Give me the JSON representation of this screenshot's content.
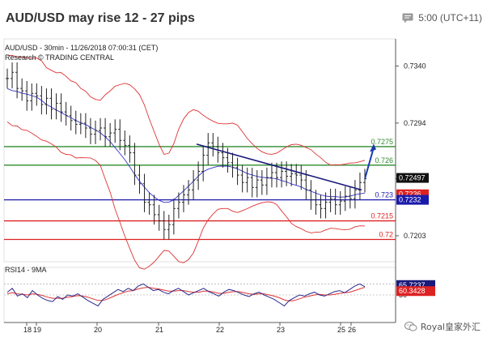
{
  "header": {
    "title": "AUD/USD may rise 12 - 27 pips",
    "timezone": "5:00 (UTC+11)",
    "icon": "message-icon"
  },
  "chart_data": {
    "type": "line",
    "title": "AUD/USD - 30min - 11/26/2018 07:00:31 (CET)",
    "subtitle": "Research © TRADING CENTRAL",
    "x_tick_labels": [
      "18",
      "19",
      "20",
      "21",
      "22",
      "23",
      "25",
      "26"
    ],
    "price_axis": {
      "ticks": [
        0.7203,
        0.7249,
        0.7294,
        0.734
      ],
      "tick_labels": [
        "0.7203",
        "0.7249",
        "0.7294",
        "0.7340"
      ],
      "range": [
        0.7182,
        0.7362
      ]
    },
    "levels": [
      {
        "value": 0.7275,
        "label": "0.7275",
        "color": "#2e8b2e"
      },
      {
        "value": 0.726,
        "label": "0.726",
        "color": "#2e8b2e"
      },
      {
        "value": 0.7232,
        "label": "0.723",
        "color": "#1a1aaa"
      },
      {
        "value": 0.7215,
        "label": "0.7215",
        "color": "#dd2222"
      },
      {
        "value": 0.72,
        "label": "0.72",
        "color": "#dd2222"
      }
    ],
    "price_boxes": [
      {
        "value": 0.72497,
        "label": "0.72497",
        "bg": "#111111"
      },
      {
        "value": 0.72365,
        "label": "0.7236",
        "bg": "#dd2222"
      },
      {
        "value": 0.7232,
        "label": "0.7232",
        "bg": "#1a1aaa"
      }
    ],
    "price_series": [
      0.733,
      0.7335,
      0.7322,
      0.732,
      0.7312,
      0.7318,
      0.7316,
      0.7309,
      0.7314,
      0.7305,
      0.731,
      0.7303,
      0.73,
      0.7296,
      0.7293,
      0.7294,
      0.729,
      0.7285,
      0.7288,
      0.729,
      0.7283,
      0.7286,
      0.7289,
      0.728,
      0.7276,
      0.727,
      0.7252,
      0.7245,
      0.723,
      0.7228,
      0.722,
      0.7215,
      0.7208,
      0.7212,
      0.7225,
      0.723,
      0.7236,
      0.724,
      0.7248,
      0.7255,
      0.7268,
      0.7278,
      0.7275,
      0.727,
      0.7266,
      0.7262,
      0.7258,
      0.7252,
      0.7246,
      0.725,
      0.7242,
      0.7248,
      0.7244,
      0.725,
      0.7254,
      0.725,
      0.7255,
      0.7251,
      0.7253,
      0.7252,
      0.7248,
      0.724,
      0.7232,
      0.7228,
      0.7225,
      0.723,
      0.7233,
      0.7228,
      0.7231,
      0.7235,
      0.7233,
      0.724,
      0.7246,
      0.7249
    ],
    "trendline": {
      "start": 0.7277,
      "end": 0.724
    },
    "projection": {
      "from": 0.7249,
      "to": 0.7272
    },
    "rsi": {
      "label": "RSI14 - 9MA",
      "range": [
        0,
        100
      ],
      "ticks": [
        50,
        70
      ],
      "rsi_value": "65.7237",
      "ma_value": "60.3428",
      "rsi_series": [
        55,
        62,
        48,
        52,
        45,
        58,
        50,
        44,
        40,
        38,
        47,
        42,
        50,
        48,
        52,
        46,
        40,
        35,
        30,
        42,
        48,
        54,
        60,
        56,
        62,
        58,
        66,
        70,
        64,
        58,
        60,
        55,
        52,
        58,
        62,
        56,
        50,
        54,
        58,
        62,
        56,
        52,
        48,
        55,
        60,
        58,
        54,
        50,
        47,
        52,
        55,
        50,
        46,
        42,
        36,
        30,
        40,
        45,
        50,
        48,
        52,
        55,
        50,
        48,
        52,
        56,
        58,
        54,
        60,
        66,
        70,
        65
      ],
      "ma_series": [
        52,
        54,
        52,
        51,
        50,
        52,
        51,
        49,
        46,
        44,
        44,
        44,
        46,
        47,
        49,
        48,
        46,
        43,
        40,
        40,
        43,
        47,
        51,
        54,
        57,
        58,
        61,
        63,
        64,
        62,
        61,
        59,
        57,
        57,
        58,
        58,
        56,
        55,
        55,
        57,
        57,
        55,
        53,
        53,
        55,
        56,
        56,
        54,
        52,
        51,
        52,
        52,
        50,
        48,
        45,
        41,
        39,
        40,
        43,
        46,
        48,
        50,
        51,
        50,
        50,
        51,
        53,
        54,
        55,
        58,
        61,
        64
      ]
    }
  },
  "watermark": {
    "text": "Royal皇家外汇",
    "icon": "wechat-icon"
  }
}
